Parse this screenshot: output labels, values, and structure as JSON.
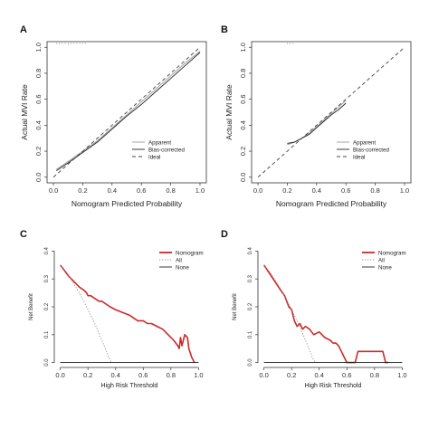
{
  "chart_data": [
    {
      "panel": "A",
      "type": "line",
      "xlabel": "Nomogram Predicted Probability",
      "ylabel": "Actual MVI Rate",
      "xlim": [
        0,
        1
      ],
      "ylim": [
        0,
        1
      ],
      "xticks": [
        "0.0",
        "0.2",
        "0.4",
        "0.6",
        "0.8",
        "1.0"
      ],
      "yticks": [
        "0.0",
        "0.2",
        "0.4",
        "0.6",
        "0.8",
        "1.0"
      ],
      "legend": {
        "position": "bottom-right",
        "entries": [
          "Apparent",
          "Bias-corrected",
          "Ideal"
        ]
      },
      "series": [
        {
          "name": "Apparent",
          "style": "solid-light",
          "color": "#9a9a9a",
          "x": [
            0.02,
            0.1,
            0.2,
            0.3,
            0.4,
            0.5,
            0.6,
            0.7,
            0.8,
            0.9,
            1.0
          ],
          "y": [
            0.06,
            0.12,
            0.2,
            0.28,
            0.38,
            0.48,
            0.58,
            0.68,
            0.78,
            0.88,
            0.97
          ]
        },
        {
          "name": "Bias-corrected",
          "style": "solid",
          "color": "#222222",
          "x": [
            0.02,
            0.1,
            0.2,
            0.3,
            0.4,
            0.5,
            0.6,
            0.7,
            0.8,
            0.9,
            1.0
          ],
          "y": [
            0.05,
            0.11,
            0.19,
            0.27,
            0.37,
            0.47,
            0.56,
            0.66,
            0.76,
            0.86,
            0.96
          ]
        },
        {
          "name": "Ideal",
          "style": "dashed",
          "color": "#444444",
          "x": [
            0,
            1
          ],
          "y": [
            0,
            1
          ]
        }
      ]
    },
    {
      "panel": "B",
      "type": "line",
      "xlabel": "Nomogram Predicted Probability",
      "ylabel": "Actual MVI Rate",
      "xlim": [
        0,
        1
      ],
      "ylim": [
        0,
        1
      ],
      "xticks": [
        "0.0",
        "0.2",
        "0.4",
        "0.6",
        "0.8",
        "1.0"
      ],
      "yticks": [
        "0.0",
        "0.2",
        "0.4",
        "0.6",
        "0.8",
        "1.0"
      ],
      "legend": {
        "position": "bottom-right",
        "entries": [
          "Apparent",
          "Bias-corrected",
          "Ideal"
        ]
      },
      "series": [
        {
          "name": "Apparent",
          "style": "solid-light",
          "color": "#9a9a9a",
          "x": [
            0.2,
            0.25,
            0.3,
            0.35,
            0.4,
            0.45,
            0.5,
            0.55,
            0.6
          ],
          "y": [
            0.25,
            0.27,
            0.3,
            0.34,
            0.39,
            0.44,
            0.49,
            0.54,
            0.59
          ]
        },
        {
          "name": "Bias-corrected",
          "style": "solid",
          "color": "#222222",
          "x": [
            0.2,
            0.25,
            0.3,
            0.35,
            0.4,
            0.45,
            0.5,
            0.55,
            0.6
          ],
          "y": [
            0.26,
            0.27,
            0.3,
            0.33,
            0.38,
            0.43,
            0.48,
            0.52,
            0.57
          ]
        },
        {
          "name": "Ideal",
          "style": "dashed",
          "color": "#444444",
          "x": [
            0,
            1
          ],
          "y": [
            0,
            1
          ]
        }
      ]
    },
    {
      "panel": "C",
      "type": "line",
      "xlabel": "High Risk Threshold",
      "ylabel": "Net Benefit",
      "xlim": [
        0,
        1
      ],
      "ylim": [
        0,
        0.4
      ],
      "xticks": [
        "0.0",
        "0.2",
        "0.4",
        "0.6",
        "0.8",
        "1.0"
      ],
      "yticks": [
        "0.0",
        "0.1",
        "0.2",
        "0.3",
        "0.4"
      ],
      "legend": {
        "position": "top-right",
        "entries": [
          "Nomogram",
          "All",
          "None"
        ]
      },
      "series": [
        {
          "name": "Nomogram",
          "style": "solid-thick",
          "color": "#cc2a2a",
          "x": [
            0.0,
            0.03,
            0.06,
            0.1,
            0.14,
            0.17,
            0.19,
            0.2,
            0.22,
            0.25,
            0.28,
            0.3,
            0.33,
            0.36,
            0.4,
            0.45,
            0.5,
            0.53,
            0.56,
            0.6,
            0.63,
            0.66,
            0.7,
            0.74,
            0.78,
            0.82,
            0.85,
            0.86,
            0.87,
            0.88,
            0.9,
            0.92,
            0.93,
            0.95,
            0.97
          ],
          "y": [
            0.35,
            0.33,
            0.31,
            0.29,
            0.27,
            0.26,
            0.25,
            0.24,
            0.24,
            0.23,
            0.22,
            0.22,
            0.21,
            0.2,
            0.19,
            0.18,
            0.17,
            0.16,
            0.15,
            0.15,
            0.14,
            0.14,
            0.13,
            0.12,
            0.1,
            0.08,
            0.06,
            0.05,
            0.09,
            0.06,
            0.1,
            0.09,
            0.05,
            0.02,
            0.0
          ]
        },
        {
          "name": "All",
          "style": "dotted",
          "color": "#8a8a8a",
          "x": [
            0.0,
            0.05,
            0.1,
            0.15,
            0.2,
            0.25,
            0.3,
            0.35,
            0.37
          ],
          "y": [
            0.35,
            0.32,
            0.28,
            0.24,
            0.19,
            0.14,
            0.08,
            0.02,
            0.0
          ]
        },
        {
          "name": "None",
          "style": "solid",
          "color": "#222222",
          "x": [
            0,
            1
          ],
          "y": [
            0,
            0
          ]
        }
      ]
    },
    {
      "panel": "D",
      "type": "line",
      "xlabel": "High Risk Threshold",
      "ylabel": "Net Benefit",
      "xlim": [
        0,
        1
      ],
      "ylim": [
        0,
        0.4
      ],
      "xticks": [
        "0.0",
        "0.2",
        "0.4",
        "0.6",
        "0.8",
        "1.0"
      ],
      "yticks": [
        "0.0",
        "0.1",
        "0.2",
        "0.3",
        "0.4"
      ],
      "legend": {
        "position": "top-right",
        "entries": [
          "Nomogram",
          "All",
          "None"
        ]
      },
      "series": [
        {
          "name": "Nomogram",
          "style": "solid-thick",
          "color": "#cc2a2a",
          "x": [
            0.0,
            0.04,
            0.08,
            0.12,
            0.15,
            0.18,
            0.2,
            0.22,
            0.24,
            0.26,
            0.28,
            0.3,
            0.33,
            0.36,
            0.4,
            0.44,
            0.48,
            0.5,
            0.52,
            0.54,
            0.56,
            0.58,
            0.6,
            0.62,
            0.64,
            0.66,
            0.68,
            0.7,
            0.72,
            0.74,
            0.76,
            0.78,
            0.8,
            0.82,
            0.84,
            0.86,
            0.88,
            0.9
          ],
          "y": [
            0.35,
            0.32,
            0.29,
            0.26,
            0.24,
            0.2,
            0.19,
            0.15,
            0.13,
            0.14,
            0.12,
            0.13,
            0.12,
            0.1,
            0.11,
            0.09,
            0.08,
            0.07,
            0.07,
            0.06,
            0.04,
            0.02,
            0.0,
            0.0,
            0.0,
            0.0,
            0.04,
            0.04,
            0.04,
            0.04,
            0.04,
            0.04,
            0.04,
            0.04,
            0.04,
            0.04,
            0.0,
            0.0
          ]
        },
        {
          "name": "All",
          "style": "dotted",
          "color": "#8a8a8a",
          "x": [
            0.0,
            0.05,
            0.1,
            0.15,
            0.2,
            0.25,
            0.3,
            0.35,
            0.37
          ],
          "y": [
            0.35,
            0.32,
            0.28,
            0.24,
            0.19,
            0.14,
            0.08,
            0.02,
            0.0
          ]
        },
        {
          "name": "None",
          "style": "solid",
          "color": "#222222",
          "x": [
            0,
            1
          ],
          "y": [
            0,
            0
          ]
        }
      ]
    }
  ]
}
